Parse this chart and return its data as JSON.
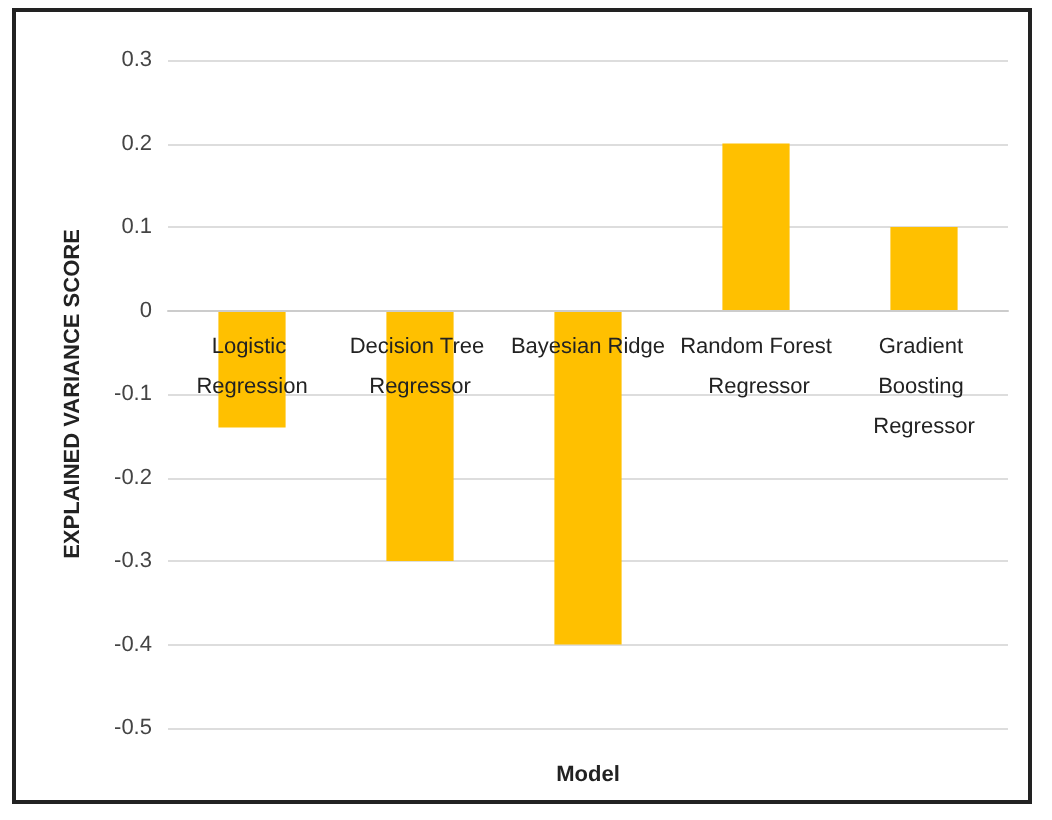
{
  "chart_data": {
    "type": "bar",
    "xlabel": "Model",
    "ylabel": "EXPLAINED VARIANCE SCORE",
    "categories": [
      "Logistic Regression",
      "Decision Tree Regressor",
      "Bayesian Ridge",
      "Random Forest Regressor",
      "Gradient Boosting Regressor"
    ],
    "values": [
      -0.14,
      -0.3,
      -0.4,
      0.2,
      0.1
    ],
    "color": "#ffc000",
    "ylim": [
      -0.5,
      0.3
    ],
    "yticks": [
      -0.5,
      -0.4,
      -0.3,
      -0.2,
      -0.1,
      0,
      0.1,
      0.2,
      0.3
    ],
    "grid": "y"
  }
}
